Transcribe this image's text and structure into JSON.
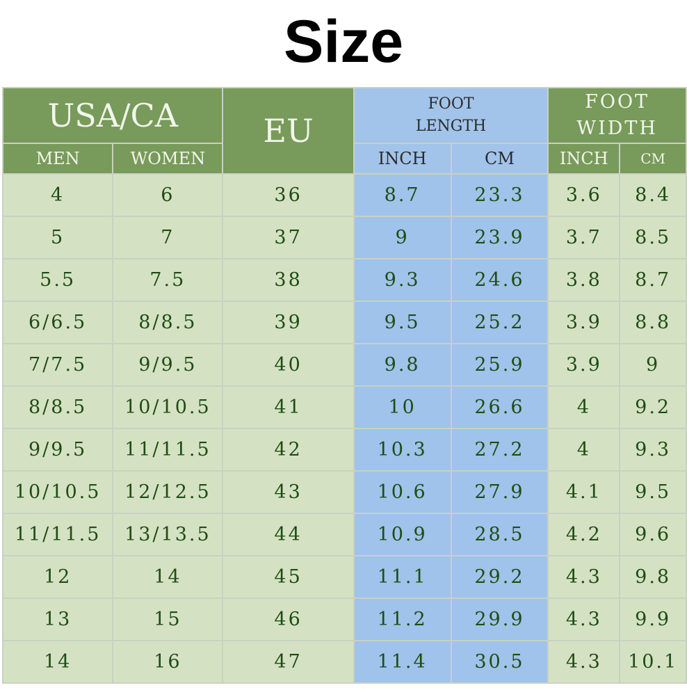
{
  "header": {
    "title": "Size"
  },
  "table": {
    "group_headers": [
      "USA/CA",
      "EU",
      "FOOT LENGTH",
      "FOOT WIDTH"
    ],
    "sub_headers": [
      "MEN",
      "WOMEN",
      "INCH",
      "CM",
      "INCH",
      "CM"
    ],
    "rows": [
      [
        "4",
        "6",
        "36",
        "8.7",
        "23.3",
        "3.6",
        "8.4"
      ],
      [
        "5",
        "7",
        "37",
        "9",
        "23.9",
        "3.7",
        "8.5"
      ],
      [
        "5.5",
        "7.5",
        "38",
        "9.3",
        "24.6",
        "3.8",
        "8.7"
      ],
      [
        "6/6.5",
        "8/8.5",
        "39",
        "9.5",
        "25.2",
        "3.9",
        "8.8"
      ],
      [
        "7/7.5",
        "9/9.5",
        "40",
        "9.8",
        "25.9",
        "3.9",
        "9"
      ],
      [
        "8/8.5",
        "10/10.5",
        "41",
        "10",
        "26.6",
        "4",
        "9.2"
      ],
      [
        "9/9.5",
        "11/11.5",
        "42",
        "10.3",
        "27.2",
        "4",
        "9.3"
      ],
      [
        "10/10.5",
        "12/12.5",
        "43",
        "10.6",
        "27.9",
        "4.1",
        "9.5"
      ],
      [
        "11/11.5",
        "13/13.5",
        "44",
        "10.9",
        "28.5",
        "4.2",
        "9.6"
      ],
      [
        "12",
        "14",
        "45",
        "11.1",
        "29.2",
        "4.3",
        "9.8"
      ],
      [
        "13",
        "15",
        "46",
        "11.2",
        "29.9",
        "4.3",
        "9.9"
      ],
      [
        "14",
        "16",
        "47",
        "11.4",
        "30.5",
        "4.3",
        "10.1"
      ]
    ]
  }
}
